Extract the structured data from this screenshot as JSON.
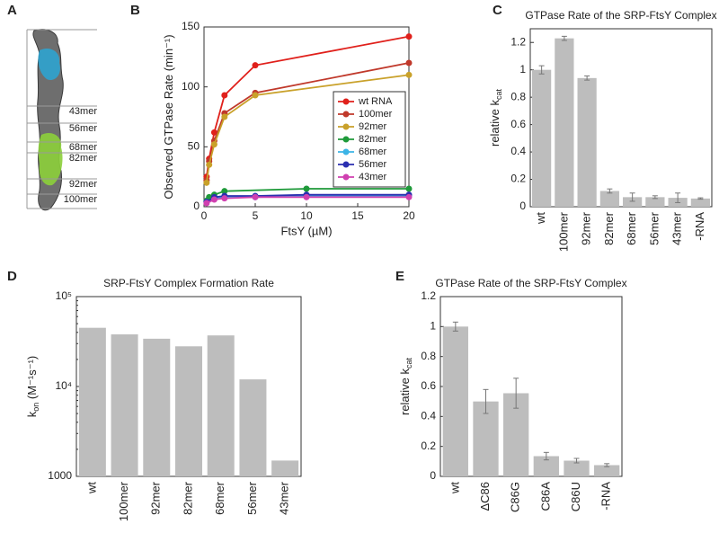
{
  "structure": {
    "panel_label": "A",
    "labels": [
      {
        "text": "43mer",
        "color": "#b03cc0"
      },
      {
        "text": "56mer",
        "color": "#2b2fb0"
      },
      {
        "text": "68mer",
        "color": "#3cb4e6"
      },
      {
        "text": "82mer",
        "color": "#1f9a3a"
      },
      {
        "text": "92mer",
        "color": "#c9a12a"
      },
      {
        "text": "100mer",
        "color": "#f07a1e"
      }
    ]
  },
  "chart_data": [
    {
      "panel_label": "B",
      "type": "line",
      "x_label": "FtsY (µM)",
      "y_label": "Observed GTPase Rate (min⁻¹)",
      "xlim": [
        0,
        20
      ],
      "xticks": [
        0,
        5,
        10,
        15,
        20
      ],
      "ylim": [
        0,
        150
      ],
      "yticks": [
        0,
        50,
        100,
        150
      ],
      "legend": "right",
      "series": [
        {
          "name": "wt RNA",
          "color": "#e0201b",
          "x": [
            0.25,
            0.5,
            1,
            2,
            5,
            20
          ],
          "values": [
            25,
            40,
            62,
            93,
            118,
            142
          ]
        },
        {
          "name": "100mer",
          "color": "#c0392b",
          "x": [
            0.25,
            0.5,
            1,
            2,
            5,
            20
          ],
          "values": [
            22,
            38,
            55,
            78,
            95,
            120
          ]
        },
        {
          "name": "92mer",
          "color": "#c9a12a",
          "x": [
            0.25,
            0.5,
            1,
            2,
            5,
            20
          ],
          "values": [
            20,
            35,
            52,
            75,
            93,
            110
          ]
        },
        {
          "name": "82mer",
          "color": "#1f9a3a",
          "x": [
            0.25,
            0.5,
            1,
            2,
            10,
            20
          ],
          "values": [
            5,
            8,
            10,
            13,
            15,
            15
          ]
        },
        {
          "name": "68mer",
          "color": "#3cb4e6",
          "x": [
            0.25,
            1,
            2,
            5,
            10,
            20
          ],
          "values": [
            4,
            7,
            8,
            8,
            9,
            9
          ]
        },
        {
          "name": "56mer",
          "color": "#2b2fb0",
          "x": [
            0.25,
            1,
            2,
            5,
            10,
            20
          ],
          "values": [
            4,
            8,
            9,
            9,
            10,
            10
          ]
        },
        {
          "name": "43mer",
          "color": "#d040b0",
          "x": [
            0.25,
            1,
            2,
            5,
            10,
            20
          ],
          "values": [
            3,
            6,
            7,
            8,
            8,
            8
          ]
        }
      ]
    },
    {
      "panel_label": "C",
      "type": "bar",
      "title": "GTPase Rate of the SRP-FtsY Complex",
      "y_label": "relative k",
      "y_label_sub": "cat",
      "color": "#bdbdbd",
      "categories": [
        "wt",
        "100mer",
        "92mer",
        "82mer",
        "68mer",
        "56mer",
        "43mer",
        "-RNA"
      ],
      "category_colors": [
        "#e0201b",
        "#f07a1e",
        "#c9a12a",
        "#1f9a3a",
        "#3cb4e6",
        "#2b2fb0",
        "#b03cc0",
        "#222222"
      ],
      "values": [
        1.0,
        1.23,
        0.94,
        0.115,
        0.07,
        0.07,
        0.065,
        0.06
      ],
      "errors": [
        0.03,
        0.015,
        0.015,
        0.015,
        0.03,
        0.01,
        0.035,
        0.005
      ],
      "ylim": [
        0,
        1.3
      ],
      "yticks": [
        0,
        0.2,
        0.4,
        0.6,
        0.8,
        1,
        1.2
      ]
    },
    {
      "panel_label": "D",
      "type": "bar",
      "title": "SRP-FtsY Complex Formation Rate",
      "y_label": "k",
      "y_label_sub": "on",
      "y_label_rest": " (M⁻¹s⁻¹)",
      "color": "#bdbdbd",
      "log_scale": true,
      "categories": [
        "wt",
        "100mer",
        "92mer",
        "82mer",
        "68mer",
        "56mer",
        "43mer"
      ],
      "category_colors": [
        "#e0201b",
        "#f07a1e",
        "#c9a12a",
        "#1f9a3a",
        "#3cb4e6",
        "#2b2fb0",
        "#b03cc0"
      ],
      "values": [
        45000,
        38000,
        34000,
        28000,
        37000,
        12000,
        1500
      ],
      "ylim": [
        1000,
        100000
      ],
      "yticks": [
        1000,
        {
          "value": 10000,
          "label": "10⁴"
        },
        {
          "value": 100000,
          "label": "10⁵"
        }
      ]
    },
    {
      "panel_label": "E",
      "type": "bar",
      "title": "GTPase Rate of the SRP-FtsY Complex",
      "y_label": "relative k",
      "y_label_sub": "cat",
      "color": "#bdbdbd",
      "categories": [
        "wt",
        "ΔC86",
        "C86G",
        "C86A",
        "C86U",
        "-RNA"
      ],
      "values": [
        1.0,
        0.5,
        0.555,
        0.135,
        0.105,
        0.075
      ],
      "errors": [
        0.03,
        0.08,
        0.1,
        0.025,
        0.015,
        0.01
      ],
      "ylim": [
        0,
        1.2
      ],
      "yticks": [
        0,
        0.2,
        0.4,
        0.6,
        0.8,
        1,
        1.2
      ]
    }
  ]
}
